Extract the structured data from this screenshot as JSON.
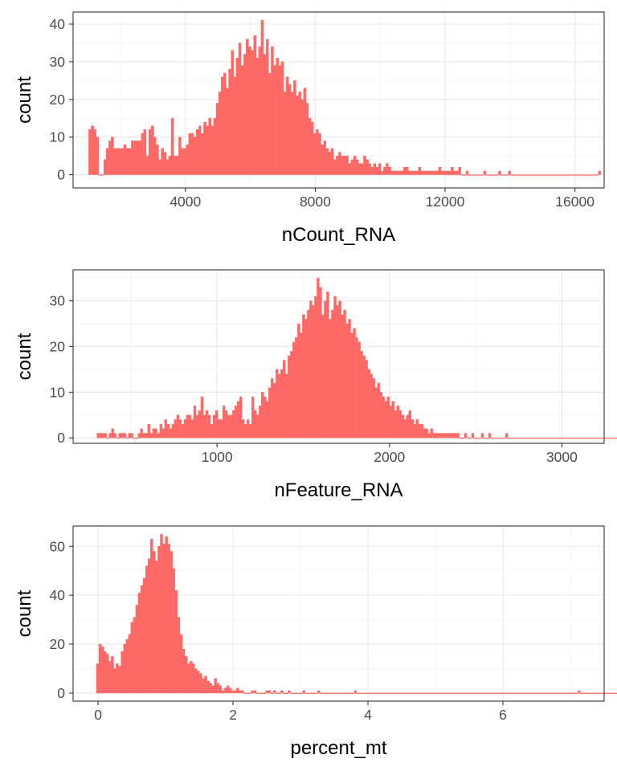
{
  "theme": {
    "bar_fill": "#ff6666",
    "bar_outline": "#f8766d",
    "panel_border": "#333333",
    "grid": "#ebebeb",
    "tick_text": "#4d4d4d"
  },
  "chart_data": [
    {
      "type": "bar",
      "subtype": "histogram",
      "xlabel": "nCount_RNA",
      "ylabel": "count",
      "xlim": [
        540,
        16900
      ],
      "ylim": [
        -3.5,
        43.2
      ],
      "x_ticks": [
        4000,
        8000,
        12000,
        16000
      ],
      "x_tick_labels": [
        "4000",
        "8000",
        "12000",
        "16000"
      ],
      "y_ticks": [
        0,
        10,
        20,
        30,
        40
      ],
      "y_tick_labels": [
        "0",
        "10",
        "20",
        "30",
        "40"
      ],
      "grid": true,
      "bin_start": 1020,
      "bin_width": 76.96,
      "counts": [
        12,
        13,
        12,
        10,
        0,
        0,
        4,
        7,
        9,
        10,
        7,
        7,
        7,
        7,
        8,
        7,
        7,
        9,
        9,
        9,
        9,
        11,
        12,
        5,
        12,
        13,
        10,
        8,
        4,
        7,
        6,
        4,
        5,
        15,
        5,
        5,
        10,
        7,
        7,
        8,
        11,
        11,
        10,
        12,
        13,
        11,
        14,
        13,
        15,
        13,
        15,
        19,
        22,
        26,
        27,
        23,
        28,
        33,
        26,
        31,
        35,
        29,
        32,
        36,
        34,
        33,
        37,
        31,
        34,
        41,
        32,
        36,
        27,
        34,
        29,
        31,
        29,
        30,
        22,
        26,
        24,
        22,
        25,
        21,
        22,
        20,
        23,
        19,
        15,
        14,
        11,
        12,
        11,
        8,
        9,
        7,
        6,
        7,
        4,
        5,
        6,
        5,
        5,
        5,
        3,
        4,
        5,
        4,
        3,
        3,
        5,
        4,
        3,
        2,
        3,
        2,
        3,
        1,
        2,
        3,
        2,
        1,
        1,
        1,
        1,
        1,
        2,
        2,
        1,
        1,
        1,
        1,
        2,
        1,
        1,
        1,
        1,
        1,
        1,
        1,
        2,
        1,
        1,
        1,
        1,
        2,
        1,
        1,
        2,
        0,
        0,
        1,
        0,
        0,
        0,
        0,
        0,
        0,
        1,
        0,
        0,
        0,
        0,
        0,
        1,
        0,
        0,
        0,
        1,
        0,
        0,
        0,
        0,
        0,
        0,
        0,
        0,
        0,
        0,
        0,
        0,
        0,
        0,
        0,
        0,
        0,
        0,
        0,
        0,
        0,
        0,
        0,
        0,
        0,
        0,
        0,
        0,
        0,
        0,
        0,
        0,
        0,
        0,
        0,
        1
      ]
    },
    {
      "type": "bar",
      "subtype": "histogram",
      "xlabel": "nFeature_RNA",
      "ylabel": "count",
      "xlim": [
        165,
        3245
      ],
      "ylim": [
        -1.2,
        36.8
      ],
      "x_ticks": [
        1000,
        2000,
        3000
      ],
      "x_tick_labels": [
        "1000",
        "2000",
        "3000"
      ],
      "y_ticks": [
        0,
        10,
        20,
        30
      ],
      "y_tick_labels": [
        "0",
        "10",
        "20",
        "30"
      ],
      "grid": true,
      "bin_start": 303,
      "bin_width": 14.02,
      "counts": [
        1,
        1,
        1,
        1,
        0,
        1,
        2,
        1,
        0,
        1,
        1,
        1,
        0,
        1,
        1,
        0,
        0,
        1,
        2,
        1,
        1,
        3,
        1,
        2,
        2,
        1,
        3,
        2,
        4,
        3,
        2,
        3,
        4,
        5,
        4,
        3,
        4,
        5,
        5,
        4,
        7,
        5,
        6,
        9,
        5,
        6,
        5,
        3,
        5,
        6,
        4,
        4,
        7,
        6,
        5,
        5,
        6,
        7,
        8,
        9,
        4,
        3,
        4,
        3,
        9,
        6,
        5,
        7,
        10,
        9,
        8,
        11,
        13,
        12,
        15,
        14,
        15,
        17,
        14,
        18,
        19,
        21,
        22,
        25,
        23,
        27,
        26,
        28,
        30,
        29,
        31,
        35,
        33,
        27,
        30,
        32,
        26,
        28,
        31,
        29,
        30,
        27,
        28,
        25,
        26,
        23,
        24,
        22,
        21,
        19,
        18,
        17,
        15,
        14,
        13,
        11,
        12,
        10,
        9,
        8,
        9,
        7,
        8,
        6,
        7,
        6,
        5,
        4,
        5,
        6,
        4,
        3,
        4,
        3,
        3,
        2,
        2,
        1,
        2,
        1,
        1,
        1,
        1,
        1,
        1,
        1,
        1,
        1,
        1,
        1,
        0,
        0,
        1,
        0,
        0,
        1,
        0,
        0,
        0,
        1,
        0,
        0,
        1,
        0,
        0,
        0,
        0,
        0,
        0,
        1,
        0,
        0,
        0,
        0,
        0,
        0,
        0,
        0,
        0,
        0,
        0,
        0,
        0,
        0,
        0,
        0,
        0,
        0,
        0,
        0,
        0,
        0,
        0,
        0,
        0,
        0,
        0,
        0,
        0,
        0,
        0,
        0,
        0,
        0,
        0,
        0,
        0,
        0,
        0,
        0,
        0,
        0,
        0,
        0,
        0,
        0,
        0,
        0,
        0,
        0,
        0,
        0,
        0,
        0,
        0,
        0,
        0,
        0,
        0,
        0,
        0,
        0,
        0,
        0,
        0,
        0,
        0,
        0,
        0,
        0,
        0,
        0,
        0,
        0,
        0,
        0,
        0,
        0,
        0,
        0,
        0,
        0,
        0,
        0,
        0,
        0,
        0,
        0,
        0,
        0,
        0,
        0,
        0,
        0,
        0,
        0,
        0,
        0,
        0,
        0,
        0,
        0,
        0,
        1
      ]
    },
    {
      "type": "bar",
      "subtype": "histogram",
      "xlabel": "percent_mt",
      "ylabel": "count",
      "xlim": [
        -0.37,
        7.5
      ],
      "ylim": [
        -3.3,
        68.3
      ],
      "x_ticks": [
        0,
        2,
        4,
        6
      ],
      "x_tick_labels": [
        "0",
        "2",
        "4",
        "6"
      ],
      "y_ticks": [
        0,
        20,
        40,
        60
      ],
      "y_tick_labels": [
        "0",
        "20",
        "40",
        "60"
      ],
      "grid": true,
      "bin_start": -0.025,
      "bin_width": 0.0364,
      "counts": [
        12,
        20,
        19,
        17,
        16,
        13,
        15,
        10,
        12,
        11,
        17,
        20,
        22,
        24,
        29,
        31,
        36,
        41,
        44,
        47,
        52,
        55,
        63,
        58,
        54,
        60,
        65,
        61,
        64,
        61,
        58,
        51,
        42,
        31,
        24,
        18,
        15,
        12,
        13,
        12,
        10,
        9,
        8,
        6,
        7,
        5,
        4,
        3,
        6,
        4,
        3,
        1,
        2,
        3,
        2,
        1,
        1,
        2,
        1,
        1,
        0,
        0,
        0,
        1,
        1,
        0,
        0,
        0,
        0,
        1,
        1,
        0,
        1,
        0,
        0,
        1,
        0,
        0,
        1,
        0,
        0,
        0,
        0,
        0,
        1,
        0,
        0,
        0,
        0,
        0,
        1,
        0,
        0,
        0,
        0,
        0,
        0,
        0,
        0,
        0,
        0,
        0,
        0,
        0,
        0,
        1,
        0,
        0,
        0,
        0,
        0,
        0,
        0,
        0,
        0,
        0,
        0,
        0,
        0,
        0,
        0,
        0,
        0,
        0,
        0,
        0,
        0,
        0,
        0,
        0,
        0,
        0,
        0,
        0,
        0,
        0,
        0,
        0,
        0,
        0,
        0,
        0,
        0,
        0,
        0,
        0,
        0,
        0,
        0,
        0,
        0,
        0,
        0,
        0,
        0,
        0,
        0,
        0,
        0,
        0,
        0,
        0,
        0,
        0,
        0,
        0,
        0,
        0,
        0,
        0,
        0,
        0,
        0,
        0,
        0,
        0,
        0,
        0,
        0,
        0,
        0,
        0,
        0,
        0,
        0,
        0,
        0,
        0,
        0,
        0,
        0,
        0,
        0,
        0,
        0,
        0,
        1,
        0,
        0,
        0,
        0,
        0,
        0,
        0,
        0,
        0,
        0,
        0,
        0,
        0,
        0,
        0,
        0,
        0,
        0,
        0,
        0,
        0,
        0,
        0,
        0,
        0,
        0,
        0,
        0,
        0,
        0,
        0,
        0,
        0,
        0,
        0,
        0,
        0,
        0,
        0,
        0,
        0,
        0,
        0,
        0,
        0,
        0,
        0,
        0,
        0,
        0,
        0,
        0,
        0,
        0,
        0,
        0,
        0,
        0,
        0,
        0,
        0,
        0,
        0,
        0,
        0,
        0,
        0,
        0,
        0,
        0,
        0,
        0,
        0,
        0,
        0,
        0,
        0,
        0,
        0,
        0,
        0,
        0,
        0,
        0,
        0,
        0,
        0,
        0,
        0,
        0,
        0,
        0,
        0,
        0,
        0,
        0,
        0,
        0,
        0,
        0,
        0,
        0,
        0,
        0,
        0,
        0,
        0,
        0,
        0,
        0,
        0,
        1
      ]
    }
  ]
}
